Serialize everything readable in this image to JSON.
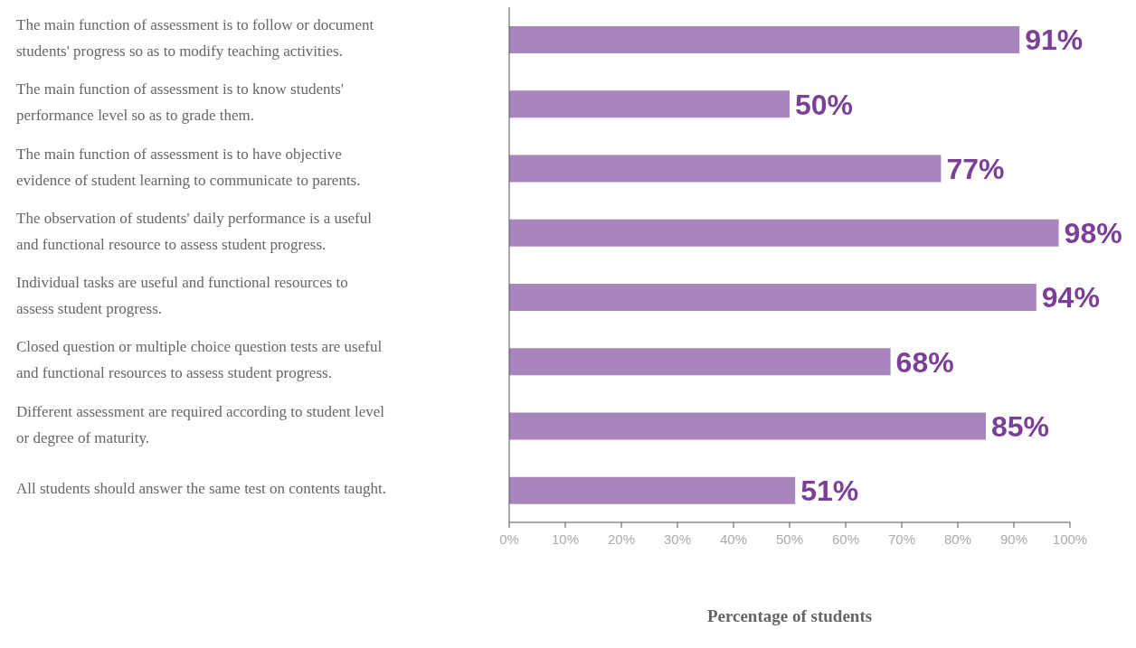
{
  "chart_data": {
    "type": "bar",
    "orientation": "horizontal",
    "xlabel": "Percentage of students",
    "categories": [
      "The main function of assessment is to follow or document students' progress so as to modify teaching activities.",
      "The main function of assessment is to know students' performance level so as to grade them.",
      "The main function of assessment is to have objective evidence of student learning to communicate to parents.",
      "The observation of students' daily performance is a useful and functional resource to assess student progress.",
      "Individual tasks are useful and functional resources to assess student progress.",
      "Closed question or multiple choice question tests are useful and functional  resources to assess student progress.",
      "Different assessment are required according to student level or degree of maturity.",
      "All students should answer the same test on contents taught."
    ],
    "values": [
      91,
      50,
      77,
      98,
      94,
      68,
      85,
      51
    ],
    "value_labels": [
      "91%",
      "50%",
      "77%",
      "98%",
      "94%",
      "68%",
      "85%",
      "51%"
    ],
    "color": "#a886bd",
    "xlim": [
      0,
      100
    ],
    "xticks": [
      {
        "value": 0,
        "label": "0%"
      },
      {
        "value": 10,
        "label": "10%"
      },
      {
        "value": 20,
        "label": "20%"
      },
      {
        "value": 30,
        "label": "30%"
      },
      {
        "value": 40,
        "label": "40%"
      },
      {
        "value": 50,
        "label": "50%"
      },
      {
        "value": 60,
        "label": "60%"
      },
      {
        "value": 70,
        "label": "70%"
      },
      {
        "value": 80,
        "label": "80%"
      },
      {
        "value": 90,
        "label": "90%"
      },
      {
        "value": 100,
        "label": "100%"
      }
    ],
    "grid": false,
    "legend": false
  }
}
